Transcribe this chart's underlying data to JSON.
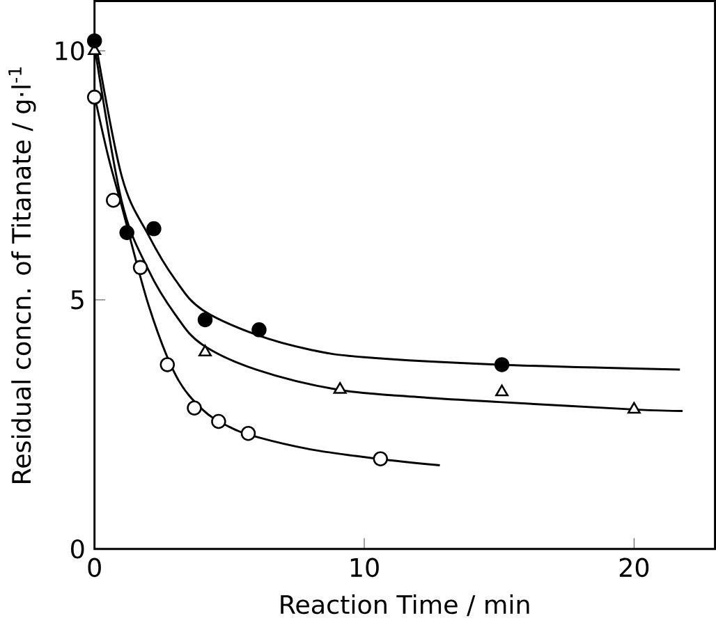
{
  "chart_data": {
    "type": "scatter",
    "xlabel": "Reaction  Time / min",
    "ylabel": "Residual  concn. of  Titanate / g·l$^{-1}$",
    "xlim": [
      0,
      23
    ],
    "ylim": [
      0,
      11
    ],
    "xticks": [
      0,
      10,
      20
    ],
    "yticks": [
      0,
      5,
      10
    ],
    "grid": false,
    "series": [
      {
        "marker": "circle",
        "color": "#ffffff",
        "x": [
          0,
          0.7,
          1.7,
          2.7,
          3.7,
          4.6,
          5.7,
          10.6
        ],
        "values": [
          9.07,
          7.0,
          5.65,
          3.7,
          2.83,
          2.56,
          2.32,
          1.81
        ]
      },
      {
        "marker": "triangle",
        "color": "#ffffff",
        "x": [
          0,
          4.1,
          9.1,
          15.1,
          20
        ],
        "values": [
          10.0,
          3.95,
          3.2,
          3.15,
          2.8
        ]
      },
      {
        "marker": "circle",
        "color": "#000000",
        "x": [
          0,
          1.2,
          2.2,
          4.1,
          6.1,
          15.1
        ],
        "values": [
          10.2,
          6.35,
          6.43,
          4.6,
          4.4,
          3.7
        ]
      },
      {
        "type": "line",
        "marker": "none",
        "color": "#000000",
        "x": [
          0,
          0.5,
          1,
          2,
          3,
          4,
          5,
          6,
          8,
          10.5,
          12.8
        ],
        "values": [
          9.1,
          7.9,
          6.9,
          4.9,
          3.5,
          2.8,
          2.45,
          2.25,
          2.0,
          1.81,
          1.68
        ]
      },
      {
        "type": "line",
        "marker": "none",
        "color": "#000000",
        "x": [
          0,
          1,
          2,
          3,
          4,
          6,
          9,
          12,
          15,
          20,
          21.8
        ],
        "values": [
          10.1,
          7.0,
          5.6,
          4.7,
          4.1,
          3.6,
          3.2,
          3.05,
          2.95,
          2.8,
          2.77
        ]
      },
      {
        "type": "line",
        "marker": "none",
        "color": "#000000",
        "x": [
          0,
          1,
          2,
          3,
          4,
          6,
          8,
          10,
          15,
          21.7
        ],
        "values": [
          10.3,
          7.5,
          6.3,
          5.4,
          4.8,
          4.3,
          4.0,
          3.85,
          3.7,
          3.6
        ]
      }
    ]
  }
}
